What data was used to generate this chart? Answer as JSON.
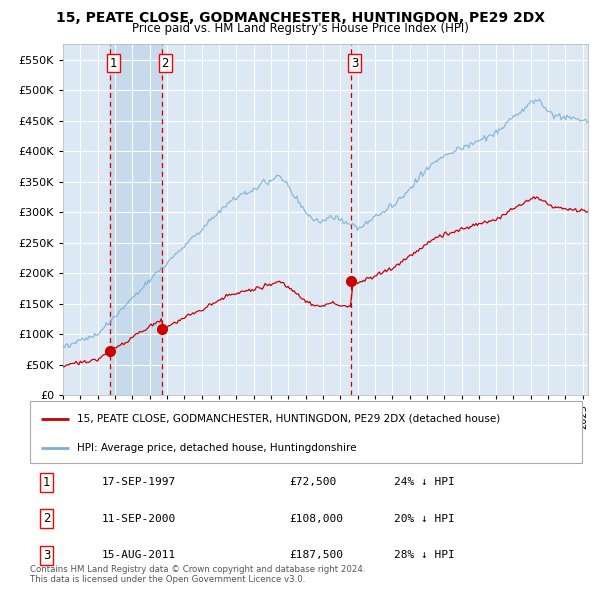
{
  "title_line1": "15, PEATE CLOSE, GODMANCHESTER, HUNTINGDON, PE29 2DX",
  "title_line2": "Price paid vs. HM Land Registry's House Price Index (HPI)",
  "red_label": "15, PEATE CLOSE, GODMANCHESTER, HUNTINGDON, PE29 2DX (detached house)",
  "blue_label": "HPI: Average price, detached house, Huntingdonshire",
  "footer_line1": "Contains HM Land Registry data © Crown copyright and database right 2024.",
  "footer_line2": "This data is licensed under the Open Government Licence v3.0.",
  "transactions": [
    {
      "num": "1",
      "date": "17-SEP-1997",
      "price": "£72,500",
      "pct": "24% ↓ HPI",
      "year": 1997.71,
      "value": 72500
    },
    {
      "num": "2",
      "date": "11-SEP-2000",
      "price": "£108,000",
      "pct": "20% ↓ HPI",
      "year": 2000.69,
      "value": 108000
    },
    {
      "num": "3",
      "date": "15-AUG-2011",
      "price": "£187,500",
      "pct": "28% ↓ HPI",
      "year": 2011.62,
      "value": 187500
    }
  ],
  "ylim": [
    0,
    575000
  ],
  "xlim_start": 1995.0,
  "xlim_end": 2025.3,
  "plot_bg": "#dce9f5",
  "red_color": "#cc0000",
  "blue_color": "#7aafd4",
  "grid_color": "#ffffff",
  "dashed_color": "#cc0000",
  "span_color": "#bdd4e8"
}
